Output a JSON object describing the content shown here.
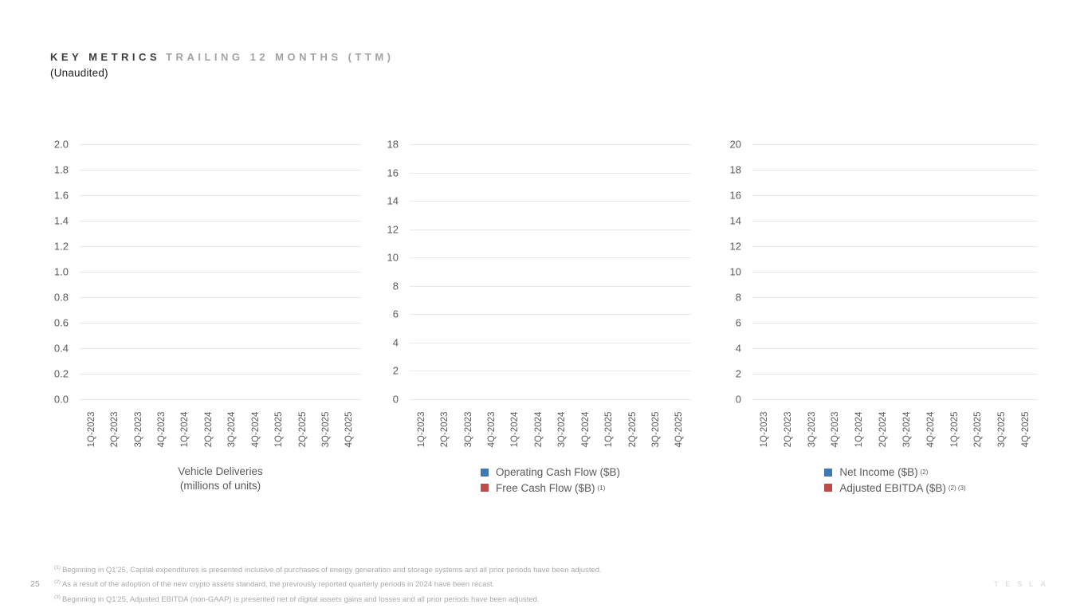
{
  "slide": {
    "title_primary": "KEY METRICS",
    "title_secondary": "TRAILING 12 MONTHS (TTM)",
    "subtitle": "(Unaudited)",
    "page_number": "25",
    "logo_text": "TESLA"
  },
  "colors": {
    "legend_blue": "#3E79B5",
    "legend_red": "#BE4B48",
    "gridline": "#E9E9E9",
    "axis_text": "#5A5A5A",
    "footnote_text": "#A9A9A9"
  },
  "chart_data": [
    {
      "type": "bar",
      "title": "Vehicle Deliveries",
      "subtitle": "(millions of units)",
      "categories": [
        "1Q-2023",
        "2Q-2023",
        "3Q-2023",
        "4Q-2023",
        "1Q-2024",
        "2Q-2024",
        "3Q-2024",
        "4Q-2024",
        "1Q-2025",
        "2Q-2025",
        "3Q-2025",
        "4Q-2025"
      ],
      "y_ticks": [
        "2.0",
        "1.8",
        "1.6",
        "1.4",
        "1.2",
        "1.0",
        "0.8",
        "0.6",
        "0.4",
        "0.2",
        "0.0"
      ],
      "ylim": [
        0.0,
        2.0
      ],
      "grid": true,
      "legend_position": "none",
      "series": [
        {
          "name": "Vehicle Deliveries (millions of units)",
          "values": []
        }
      ]
    },
    {
      "type": "bar",
      "title": "",
      "subtitle": "",
      "categories": [
        "1Q-2023",
        "2Q-2023",
        "3Q-2023",
        "4Q-2023",
        "1Q-2024",
        "2Q-2024",
        "3Q-2024",
        "4Q-2024",
        "1Q-2025",
        "2Q-2025",
        "3Q-2025",
        "4Q-2025"
      ],
      "y_ticks": [
        "18",
        "16",
        "14",
        "12",
        "10",
        "8",
        "6",
        "4",
        "2",
        "0"
      ],
      "ylim": [
        0,
        18
      ],
      "grid": true,
      "legend_position": "bottom",
      "legend": [
        {
          "label": "Operating Cash Flow ($B)",
          "sup": "",
          "swatch": "#3E79B5"
        },
        {
          "label": "Free Cash Flow ($B)",
          "sup": "(1)",
          "swatch": "#BE4B48"
        }
      ],
      "series": [
        {
          "name": "Operating Cash Flow ($B)",
          "values": []
        },
        {
          "name": "Free Cash Flow ($B)",
          "values": []
        }
      ]
    },
    {
      "type": "bar",
      "title": "",
      "subtitle": "",
      "categories": [
        "1Q-2023",
        "2Q-2023",
        "3Q-2023",
        "4Q-2023",
        "1Q-2024",
        "2Q-2024",
        "3Q-2024",
        "4Q-2024",
        "1Q-2025",
        "2Q-2025",
        "3Q-2025",
        "4Q-2025"
      ],
      "y_ticks": [
        "20",
        "18",
        "16",
        "14",
        "12",
        "10",
        "8",
        "6",
        "4",
        "2",
        "0"
      ],
      "ylim": [
        0,
        20
      ],
      "grid": true,
      "legend_position": "bottom",
      "legend": [
        {
          "label": "Net Income ($B)",
          "sup": "(2)",
          "swatch": "#3E79B5"
        },
        {
          "label": "Adjusted EBITDA ($B)",
          "sup": "(2) (3)",
          "swatch": "#BE4B48"
        }
      ],
      "series": [
        {
          "name": "Net Income ($B)",
          "values": []
        },
        {
          "name": "Adjusted EBITDA ($B)",
          "values": []
        }
      ]
    }
  ],
  "footnotes": [
    {
      "sup": "(1)",
      "text": "Beginning in Q1'25, Capital expenditures is presented inclusive of purchases of energy generation and storage systems and all prior periods have been adjusted."
    },
    {
      "sup": "(2)",
      "text": "As a result of the adoption of the new crypto assets standard, the previously reported quarterly periods in 2024 have been recast."
    },
    {
      "sup": "(3)",
      "text": "Beginning in Q1'25, Adjusted EBITDA (non-GAAP) is presented net of digital assets gains and losses and all prior periods have been adjusted."
    }
  ]
}
